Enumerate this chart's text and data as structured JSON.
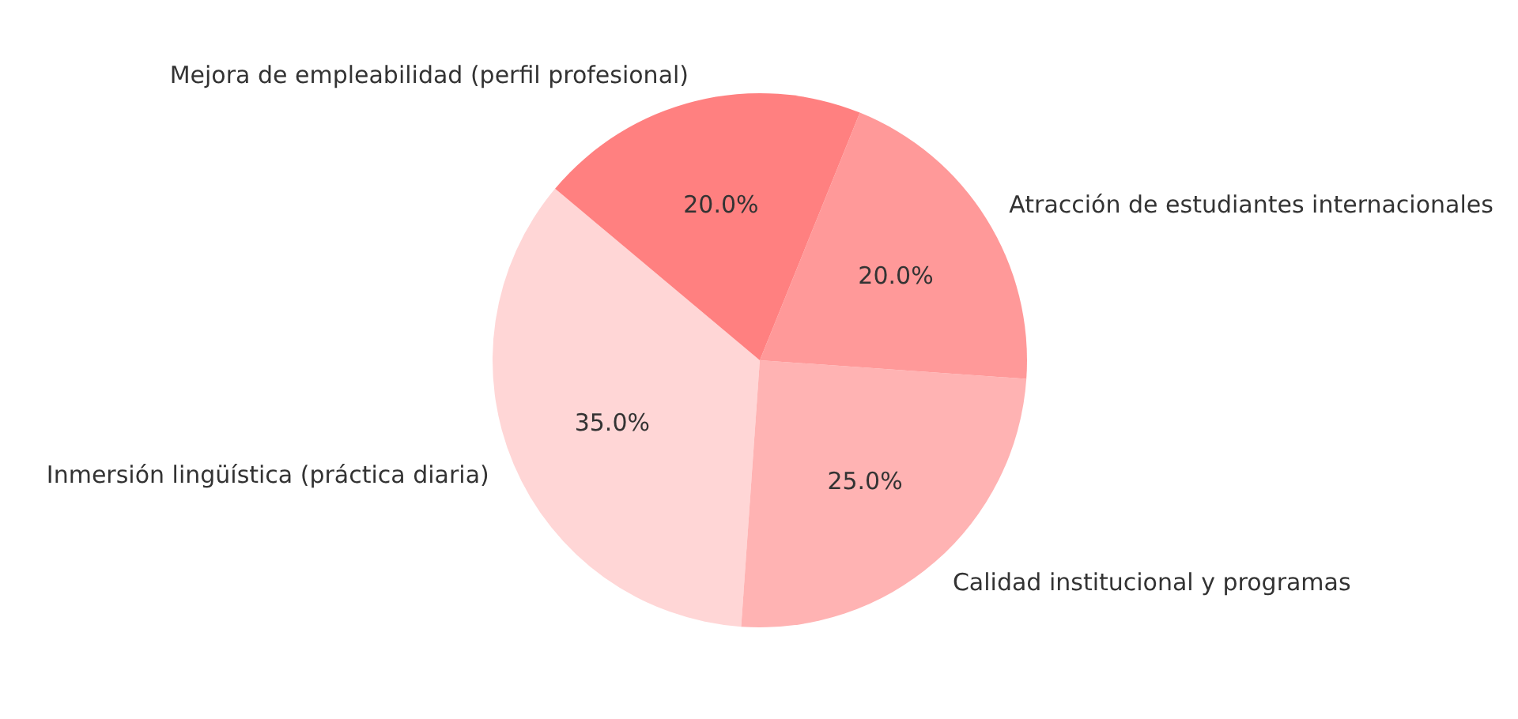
{
  "chart_data": {
    "type": "pie",
    "categories": [
      "Inmersión lingüística (práctica diaria)",
      "Calidad institucional y programas",
      "Atracción de estudiantes internacionales",
      "Mejora de empleabilidad (perfil profesional)"
    ],
    "values": [
      35,
      25,
      20,
      20
    ],
    "colors": [
      "#ffd6d6",
      "#ffb3b3",
      "#ff9999",
      "#ff8080"
    ],
    "value_labels": [
      "35.0%",
      "25.0%",
      "20.0%",
      "20.0%"
    ]
  }
}
